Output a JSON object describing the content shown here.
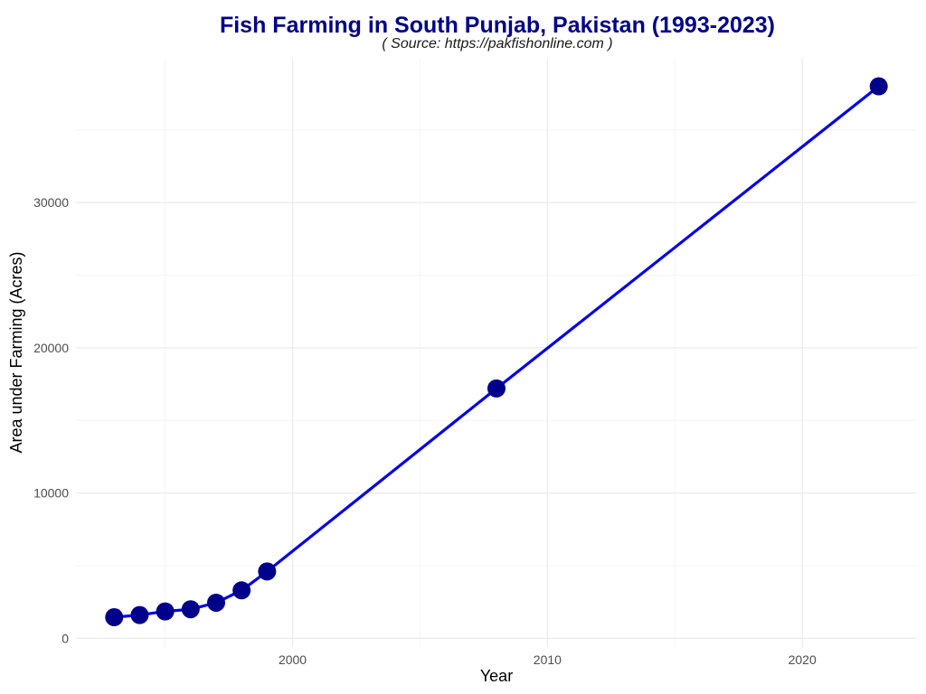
{
  "chart_data": {
    "type": "line",
    "title": "Fish Farming in South Punjab, Pakistan (1993-2023)",
    "subtitle": "( Source: https://pakfishonline.com )",
    "xlabel": "Year",
    "ylabel": "Area under Farming (Acres)",
    "x": [
      1993,
      1994,
      1995,
      1996,
      1997,
      1998,
      1999,
      2008,
      2023
    ],
    "series": [
      {
        "name": "Area under Farming",
        "values": [
          1450,
          1600,
          1850,
          2000,
          2450,
          3300,
          4600,
          17200,
          38000
        ]
      }
    ],
    "xlim": [
      1991.5,
      2024.5
    ],
    "ylim": [
      -600,
      39900
    ],
    "xticks": [
      2000,
      2010,
      2020
    ],
    "xticks_minor": [
      1995,
      2005,
      2015
    ],
    "yticks": [
      0,
      10000,
      20000,
      30000
    ],
    "yticks_minor": [
      5000,
      15000,
      25000,
      35000
    ],
    "grid": true,
    "legend": "none",
    "colors": {
      "title": "#00008b",
      "line": "#0000ee",
      "point": "#00008b",
      "grid_major": "#ebebeb",
      "grid_minor": "#f5f5f5"
    }
  }
}
